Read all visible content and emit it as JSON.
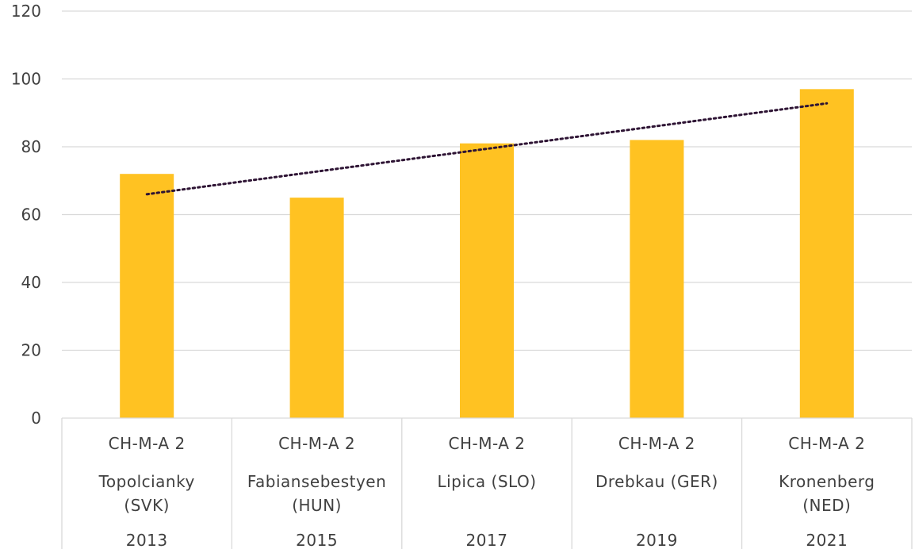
{
  "chart_data": {
    "type": "bar",
    "categories": [
      {
        "group": "CH-M-A 2",
        "place": [
          "Topolcianky",
          "(SVK)"
        ],
        "year": "2013"
      },
      {
        "group": "CH-M-A 2",
        "place": [
          "Fabiansebestyen",
          "(HUN)"
        ],
        "year": "2015"
      },
      {
        "group": "CH-M-A 2",
        "place": [
          "Lipica (SLO)"
        ],
        "year": "2017"
      },
      {
        "group": "CH-M-A 2",
        "place": [
          "Drebkau (GER)"
        ],
        "year": "2019"
      },
      {
        "group": "CH-M-A 2",
        "place": [
          "Kronenberg",
          "(NED)"
        ],
        "year": "2021"
      }
    ],
    "values": [
      72,
      65,
      81,
      82,
      97
    ],
    "ylim": [
      0,
      120
    ],
    "yticks": [
      "0",
      "20",
      "40",
      "60",
      "80",
      "100",
      "120"
    ],
    "trendline": {
      "type": "linear",
      "style": "dotted"
    },
    "grid": true,
    "legend": "none",
    "title": "",
    "xlabel": "",
    "ylabel": "",
    "colors": {
      "bar": "#FFC222",
      "trend": "#2E1434",
      "grid": "#D9D9D9",
      "text": "#404040"
    }
  }
}
